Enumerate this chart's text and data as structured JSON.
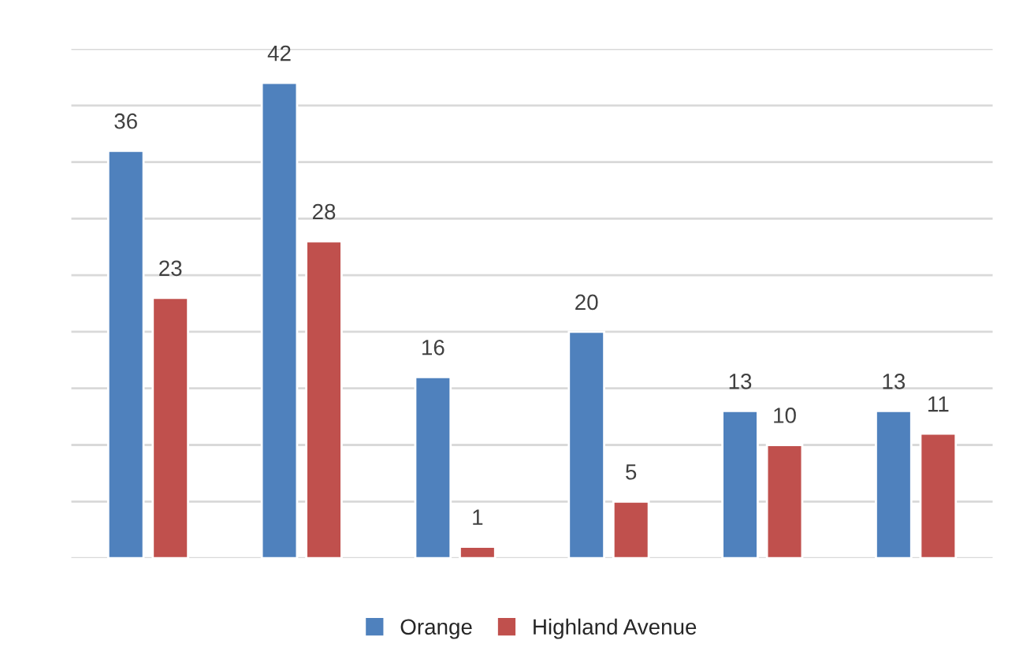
{
  "chart_data": {
    "type": "bar",
    "categories": [
      null,
      null,
      null,
      null,
      null,
      null
    ],
    "series": [
      {
        "name": "Orange",
        "color": "#4f81bd",
        "values": [
          36,
          42,
          16,
          20,
          13,
          13
        ]
      },
      {
        "name": "Highland Avenue",
        "color": "#c0504d",
        "values": [
          23,
          28,
          1,
          5,
          10,
          11
        ]
      }
    ],
    "ylim": [
      0,
      45
    ],
    "yticks": [
      {
        "value": 0,
        "label": null
      },
      {
        "value": 5,
        "label": null
      },
      {
        "value": 10,
        "label": null
      },
      {
        "value": 15,
        "label": null
      },
      {
        "value": 20,
        "label": null
      },
      {
        "value": 25,
        "label": null
      },
      {
        "value": 30,
        "label": null
      },
      {
        "value": 35,
        "label": null
      },
      {
        "value": 40,
        "label": null
      },
      {
        "value": 45,
        "label": null
      }
    ],
    "grid": "y",
    "data_labels": true,
    "legend": "bottom"
  }
}
